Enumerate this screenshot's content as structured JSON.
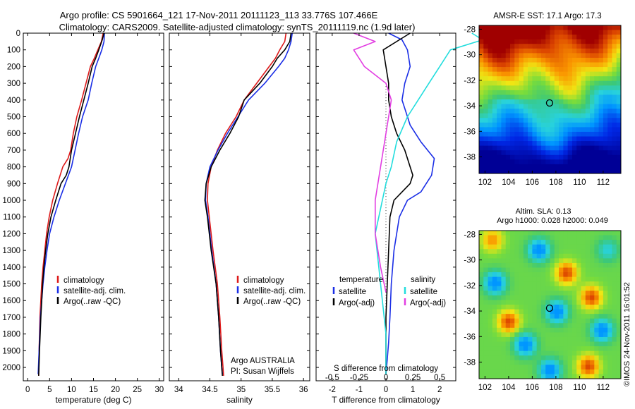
{
  "header": {
    "line1": "Argo profile: CS 5901664_121 17-Nov-2011 20111123_113 33.776S 107.466E",
    "line2": "Climatology: CARS2009. Satellite-adjusted climatology: synTS_20111119.nc (1.9d later)"
  },
  "colors": {
    "climatology": "#dd1a1a",
    "satellite": "#1a2ee6",
    "argo": "#000000",
    "sal_satellite": "#22dddd",
    "sal_argo": "#e23ee2"
  },
  "chart_data": [
    {
      "id": "temperature",
      "type": "line",
      "xlabel": "temperature (deg C)",
      "ylabel": "",
      "xlim": [
        -1,
        31
      ],
      "ylim": [
        2080,
        0
      ],
      "xticks": [
        0,
        5,
        10,
        15,
        20,
        25,
        30
      ],
      "yticks": [
        0,
        100,
        200,
        300,
        400,
        500,
        600,
        700,
        800,
        900,
        1000,
        1100,
        1200,
        1300,
        1400,
        1500,
        1600,
        1700,
        1800,
        1900,
        2000
      ],
      "legend": [
        "climatology",
        "satellite-adj. clim.",
        "Argo(..raw -QC)"
      ],
      "series": [
        {
          "key": "climatology",
          "x": [
            17.2,
            16.8,
            16.0,
            15.2,
            14.3,
            13.3,
            12.3,
            11.2,
            10.4,
            9.8,
            9.2,
            8.0,
            6.8,
            5.7,
            4.9,
            4.3,
            3.9,
            3.5,
            3.2,
            2.8,
            2.6,
            2.5
          ],
          "depth": [
            0,
            50,
            100,
            150,
            200,
            300,
            400,
            500,
            600,
            700,
            750,
            800,
            900,
            1000,
            1100,
            1200,
            1300,
            1400,
            1500,
            1700,
            1900,
            2050
          ]
        },
        {
          "key": "satellite",
          "x": [
            17.5,
            17.4,
            16.9,
            16.2,
            15.5,
            14.6,
            13.8,
            12.5,
            11.6,
            10.8,
            10.0,
            8.6,
            7.2,
            6.0,
            5.0,
            4.4,
            3.9,
            3.5,
            3.2,
            2.9,
            2.6,
            2.4
          ],
          "depth": [
            0,
            50,
            100,
            150,
            200,
            300,
            400,
            500,
            600,
            700,
            800,
            900,
            1000,
            1100,
            1200,
            1300,
            1400,
            1500,
            1600,
            1700,
            1900,
            2040
          ]
        },
        {
          "key": "argo",
          "x": [
            17.4,
            17.0,
            16.2,
            15.5,
            14.7,
            13.8,
            12.8,
            11.8,
            10.9,
            10.0,
            9.4,
            8.8,
            7.6,
            6.4,
            5.3,
            4.6,
            4.1,
            3.7,
            3.4,
            3.0,
            2.7,
            2.5
          ],
          "depth": [
            0,
            40,
            100,
            150,
            200,
            300,
            400,
            500,
            600,
            700,
            800,
            850,
            900,
            1000,
            1100,
            1200,
            1300,
            1400,
            1500,
            1700,
            1900,
            2050
          ]
        }
      ]
    },
    {
      "id": "salinity",
      "type": "line",
      "xlabel": "salinity",
      "ylabel": "",
      "xlim": [
        33.85,
        36.1
      ],
      "ylim": [
        2080,
        0
      ],
      "xticks": [
        34,
        34.5,
        35,
        35.5,
        36
      ],
      "xticklabels": [
        "34",
        "34.5",
        "35",
        "35.5",
        "36"
      ],
      "legend": [
        "climatology",
        "satellite-adj. clim.",
        "Argo(..raw -QC)"
      ],
      "annotation": [
        "Argo AUSTRALIA",
        "PI: Susan Wijffels"
      ],
      "series": [
        {
          "key": "climatology",
          "x": [
            35.72,
            35.7,
            35.62,
            35.55,
            35.45,
            35.25,
            35.05,
            34.92,
            34.75,
            34.62,
            34.52,
            34.47,
            34.46,
            34.49,
            34.55,
            34.62,
            34.66,
            34.69,
            34.71,
            34.72
          ],
          "depth": [
            0,
            50,
            100,
            150,
            200,
            300,
            400,
            500,
            600,
            700,
            800,
            900,
            1000,
            1100,
            1300,
            1500,
            1700,
            1900,
            2000,
            2050
          ]
        },
        {
          "key": "satellite",
          "x": [
            35.82,
            35.8,
            35.76,
            35.7,
            35.6,
            35.38,
            35.12,
            34.95,
            34.78,
            34.63,
            34.5,
            34.44,
            34.43,
            34.47,
            34.53,
            34.6,
            34.64,
            34.67,
            34.69,
            34.7
          ],
          "depth": [
            0,
            50,
            100,
            150,
            200,
            300,
            400,
            500,
            600,
            700,
            800,
            900,
            1000,
            1100,
            1300,
            1500,
            1700,
            1900,
            2000,
            2040
          ]
        },
        {
          "key": "argo",
          "x": [
            35.8,
            35.78,
            35.7,
            35.58,
            35.5,
            35.3,
            35.05,
            34.96,
            34.82,
            34.66,
            34.52,
            34.44,
            34.42,
            34.46,
            34.52,
            34.6,
            34.64,
            34.67,
            34.69,
            34.7
          ],
          "depth": [
            0,
            50,
            100,
            150,
            200,
            300,
            400,
            500,
            600,
            700,
            800,
            900,
            1000,
            1100,
            1300,
            1500,
            1700,
            1900,
            2000,
            2050
          ]
        }
      ]
    },
    {
      "id": "differences",
      "type": "line",
      "xlabel": "T difference from climatology",
      "x2label": "S difference from climatology",
      "xlim": [
        -2.6,
        2.6
      ],
      "ylim": [
        2080,
        0
      ],
      "xticks": [
        -2,
        -1,
        0,
        1,
        2
      ],
      "xticklabels": [
        "-2",
        "-1",
        "0",
        "1",
        "2"
      ],
      "x2ticks": [
        -0.5,
        -0.25,
        0,
        0.25,
        0.5
      ],
      "x2ticklabels": [
        "-0.5",
        "-0.25",
        "0",
        "0.25",
        "0.5"
      ],
      "legend_titles": [
        "temperature",
        "salinity"
      ],
      "legend": [
        "satellite",
        "Argo(-adj)",
        "satellite",
        "Argo(-adj)"
      ],
      "series": [
        {
          "key": "satellite",
          "name": "temperature satellite",
          "x": [
            0.1,
            0.6,
            0.8,
            0.9,
            0.7,
            0.6,
            0.7,
            0.9,
            1.3,
            1.8,
            1.7,
            1.3,
            0.8,
            0.5,
            0.4,
            0.3,
            0.2,
            0.15,
            0.1,
            0.05,
            0.0
          ],
          "depth": [
            0,
            40,
            100,
            200,
            300,
            400,
            450,
            550,
            650,
            750,
            850,
            950,
            1000,
            1100,
            1200,
            1300,
            1500,
            1700,
            1850,
            1950,
            2040
          ]
        },
        {
          "key": "argo",
          "name": "temperature Argo(-adj)",
          "x": [
            0.9,
            0.5,
            -0.1,
            0.0,
            0.1,
            0.1,
            0.2,
            0.4,
            0.7,
            0.9,
            1.0,
            0.9,
            0.6,
            0.3,
            0.15,
            0.1,
            0.05,
            0.0,
            0.0,
            0.0
          ],
          "depth": [
            0,
            40,
            100,
            200,
            300,
            400,
            500,
            600,
            700,
            800,
            850,
            900,
            950,
            1000,
            1100,
            1300,
            1500,
            1700,
            1900,
            2040
          ]
        },
        {
          "key": "sal_satellite",
          "name": "salinity satellite",
          "x": [
            0.8,
            0.9,
            0.6,
            0.5,
            0.4,
            0.3,
            0.2,
            0.1,
            0.05,
            0.0,
            -0.1,
            -0.05,
            0.0,
            0.0
          ],
          "depth": [
            0,
            40,
            100,
            200,
            300,
            400,
            500,
            650,
            800,
            900,
            1200,
            1500,
            1800,
            2040
          ]
        },
        {
          "key": "sal_argo",
          "name": "salinity Argo(-adj)",
          "x": [
            -0.3,
            -0.1,
            -0.3,
            -0.2,
            0.0,
            0.05,
            0.0,
            -0.05,
            -0.1,
            -0.1,
            -0.05,
            0.0
          ],
          "depth": [
            0,
            50,
            100,
            200,
            300,
            400,
            600,
            800,
            1000,
            1200,
            1400,
            1550
          ]
        }
      ]
    },
    {
      "id": "sst_map",
      "type": "heatmap",
      "title": "AMSR-E SST: 17.1  Argo: 17.3",
      "xlim": [
        101.5,
        113.5
      ],
      "ylim": [
        -39.3,
        -27.7
      ],
      "xticks": [
        102,
        104,
        106,
        108,
        110,
        112
      ],
      "yticks": [
        -28,
        -30,
        -32,
        -34,
        -36,
        -38
      ],
      "marker": {
        "lon": 107.466,
        "lat": -33.776
      }
    },
    {
      "id": "sla_map",
      "type": "heatmap",
      "title": "Altim. SLA: 0.13",
      "subtitle": "Argo h1000: 0.028 h2000: 0.049",
      "xlim": [
        101.5,
        113.5
      ],
      "ylim": [
        -39.3,
        -27.7
      ],
      "xticks": [
        102,
        104,
        106,
        108,
        110,
        112
      ],
      "yticks": [
        -28,
        -30,
        -32,
        -34,
        -36,
        -38
      ],
      "marker": {
        "lon": 107.466,
        "lat": -33.776
      }
    }
  ],
  "credit": "©IMOS 24-Nov-2011 16:01:52"
}
